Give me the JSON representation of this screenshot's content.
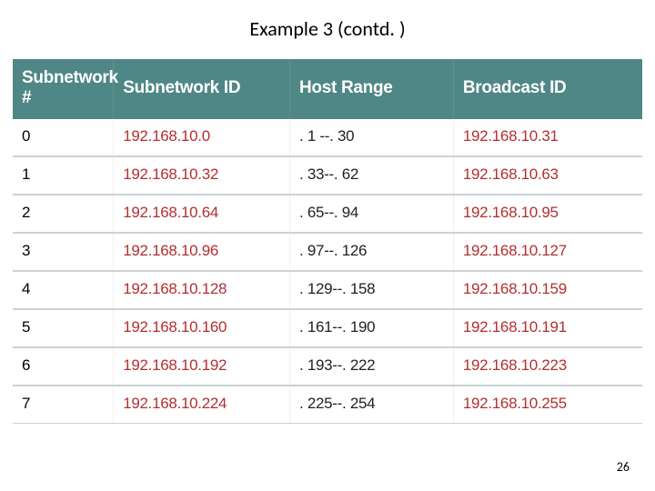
{
  "slide": {
    "title": "Example 3 (contd. )",
    "page_number": "26"
  },
  "table": {
    "header_bg": "#4e8785",
    "header_text_color": "#ffffff",
    "row_idx_color": "#000000",
    "red_text_color": "#b42f2f",
    "host_text_color": "#222222",
    "border_color": "#c9d4d3",
    "columns": [
      "Subnetwork #",
      "Subnetwork ID",
      "Host Range",
      "Broadcast ID"
    ],
    "rows": [
      {
        "idx": "0",
        "id": "192.168.10.0",
        "range": ". 1 --. 30",
        "bcast": "192.168.10.31"
      },
      {
        "idx": "1",
        "id": "192.168.10.32",
        "range": ". 33--. 62",
        "bcast": "192.168.10.63"
      },
      {
        "idx": "2",
        "id": "192.168.10.64",
        "range": ". 65--. 94",
        "bcast": "192.168.10.95"
      },
      {
        "idx": "3",
        "id": "192.168.10.96",
        "range": ". 97--. 126",
        "bcast": "192.168.10.127"
      },
      {
        "idx": "4",
        "id": "192.168.10.128",
        "range": ". 129--. 158",
        "bcast": "192.168.10.159"
      },
      {
        "idx": "5",
        "id": "192.168.10.160",
        "range": ". 161--. 190",
        "bcast": "192.168.10.191"
      },
      {
        "idx": "6",
        "id": "192.168.10.192",
        "range": ". 193--. 222",
        "bcast": "192.168.10.223"
      },
      {
        "idx": "7",
        "id": "192.168.10.224",
        "range": ". 225--. 254",
        "bcast": "192.168.10.255"
      }
    ]
  }
}
